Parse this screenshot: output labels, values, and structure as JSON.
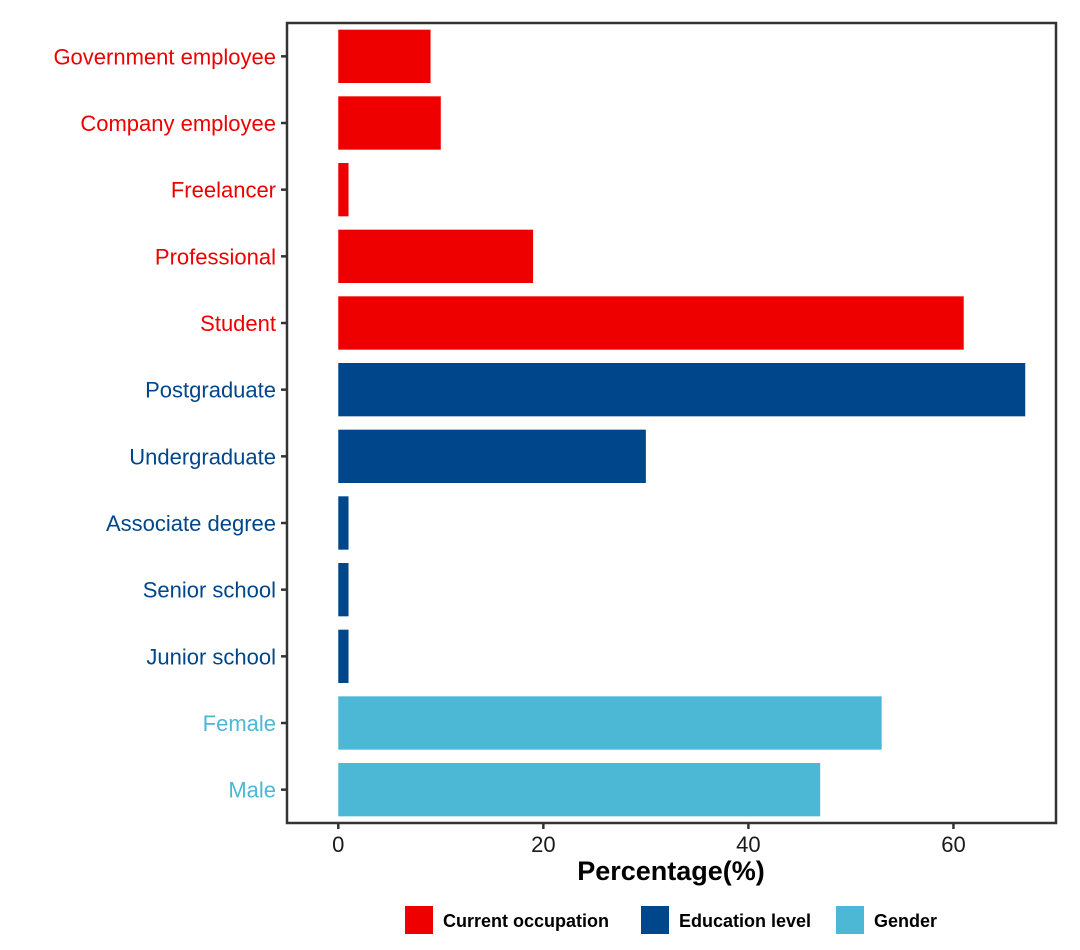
{
  "chart_data": {
    "type": "bar",
    "orientation": "horizontal",
    "xlabel": "Percentage(%)",
    "ylabel": "",
    "xlim": [
      -5,
      70
    ],
    "xticks": [
      0,
      20,
      40,
      60
    ],
    "grid": false,
    "legend_position": "bottom",
    "categories": [
      "Government employee",
      "Company employee",
      "Freelancer",
      "Professional",
      "Student",
      "Postgraduate",
      "Undergraduate",
      "Associate degree",
      "Senior school",
      "Junior school",
      "Female",
      "Male"
    ],
    "values": [
      9,
      10,
      1,
      19,
      61,
      67,
      30,
      1,
      1,
      1,
      53,
      47
    ],
    "groups": [
      "Current occupation",
      "Current occupation",
      "Current occupation",
      "Current occupation",
      "Current occupation",
      "Education level",
      "Education level",
      "Education level",
      "Education level",
      "Education level",
      "Gender",
      "Gender"
    ],
    "legend": [
      {
        "name": "Current occupation",
        "color": "#ee0000"
      },
      {
        "name": "Education level",
        "color": "#00468b"
      },
      {
        "name": "Gender",
        "color": "#4cb8d5"
      }
    ]
  }
}
